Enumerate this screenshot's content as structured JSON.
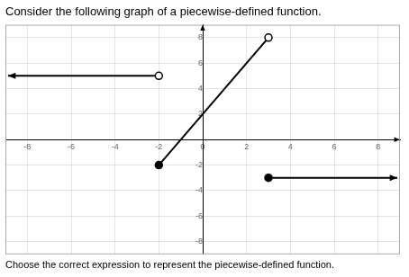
{
  "chart_data": {
    "type": "line",
    "title": "Consider the following graph of a piecewise-defined function.",
    "subtitle": "Choose the correct expression to represent the piecewise-defined function.",
    "color": "black",
    "xlim": [
      -9,
      9
    ],
    "ylim": [
      -9,
      9
    ],
    "xticks": [
      -8,
      -6,
      -4,
      -2,
      0,
      2,
      4,
      6,
      8
    ],
    "yticks": [
      -8,
      -6,
      -4,
      -2,
      2,
      4,
      6,
      8
    ],
    "grid": true,
    "series": [
      {
        "type": "line",
        "x": [
          -2
        ],
        "values": [
          5
        ],
        "line_style": "ray_left"
      },
      {
        "type": "line",
        "x": [
          -2,
          3
        ],
        "values": [
          -2,
          8
        ],
        "line_style": "solid"
      },
      {
        "type": "line",
        "x": [
          3
        ],
        "values": [
          -3
        ],
        "line_style": "ray_right"
      },
      {
        "type": "scatter",
        "x": [
          -2,
          3
        ],
        "values": [
          -2,
          -3
        ],
        "marker": "filled"
      },
      {
        "type": "scatter",
        "x": [
          -2,
          3
        ],
        "values": [
          5,
          8
        ],
        "marker": "open"
      }
    ]
  }
}
